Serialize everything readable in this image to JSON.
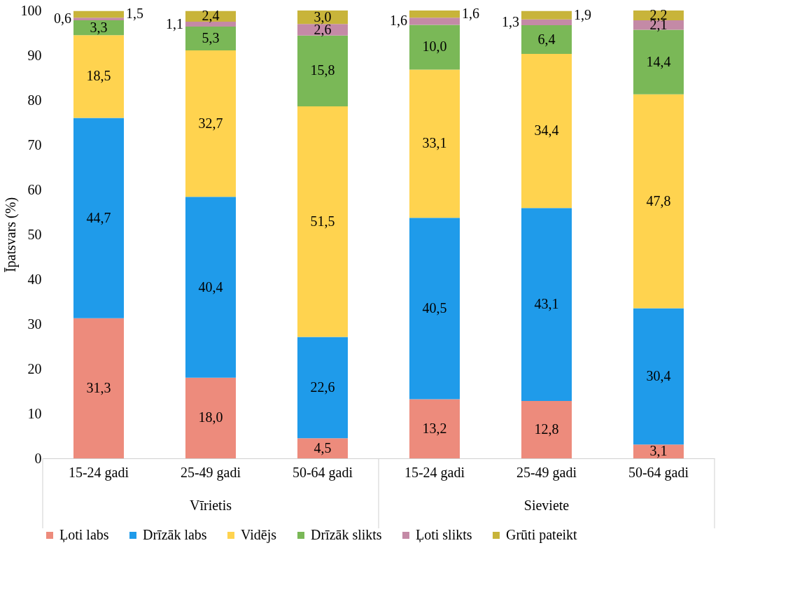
{
  "chart_data": {
    "type": "bar",
    "stacked": true,
    "ylabel": "Īpatsvars (%)",
    "categories": [
      "15-24 gadi",
      "25-49 gadi",
      "50-64 gadi",
      "15-24 gadi",
      "25-49 gadi",
      "50-64 gadi"
    ],
    "annotations": [
      "Vīrietis",
      "Sieviete"
    ],
    "ylim": [
      0,
      100
    ],
    "yticks": [
      0,
      10,
      20,
      30,
      40,
      50,
      60,
      70,
      80,
      90,
      100
    ],
    "grid": false,
    "legend": "bottom",
    "series": [
      {
        "name": "Ļoti labs",
        "color": "#ed8b7c",
        "values": [
          31.3,
          18.0,
          4.5,
          13.2,
          12.8,
          3.1
        ],
        "value_labels": [
          "31,3",
          "18,0",
          "4,5",
          "13,2",
          "12,8",
          "3,1"
        ]
      },
      {
        "name": "Drīzāk labs",
        "color": "#1f9bea",
        "values": [
          44.7,
          40.4,
          22.6,
          40.5,
          43.1,
          30.4
        ],
        "value_labels": [
          "44,7",
          "40,4",
          "22,6",
          "40,5",
          "43,1",
          "30,4"
        ]
      },
      {
        "name": "Vidējs",
        "color": "#ffd34f",
        "values": [
          18.5,
          32.7,
          51.5,
          33.1,
          34.4,
          47.8
        ],
        "value_labels": [
          "18,5",
          "32,7",
          "51,5",
          "33,1",
          "34,4",
          "47,8"
        ]
      },
      {
        "name": "Drīzāk slikts",
        "color": "#7ab857",
        "values": [
          3.3,
          5.3,
          15.8,
          10.0,
          6.4,
          14.4
        ],
        "value_labels": [
          "3,3",
          "5,3",
          "15,8",
          "10,0",
          "6,4",
          "14,4"
        ]
      },
      {
        "name": "Ļoti slikts",
        "color": "#c48aa6",
        "values": [
          0.6,
          1.1,
          2.6,
          1.6,
          1.3,
          2.1
        ],
        "value_labels": [
          "0,6",
          "1,1",
          "2,6",
          "1,6",
          "1,3",
          "2,1"
        ]
      },
      {
        "name": "Grūti pateikt",
        "color": "#c8b43a",
        "values": [
          1.5,
          2.4,
          3.0,
          1.6,
          1.9,
          2.2
        ],
        "value_labels": [
          "1,5",
          "2,4",
          "3,0",
          "1,6",
          "1,9",
          "2,2"
        ]
      }
    ]
  }
}
